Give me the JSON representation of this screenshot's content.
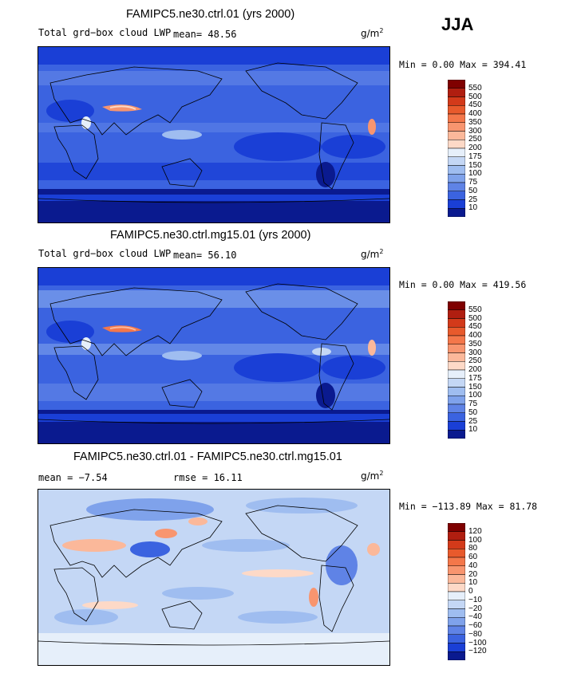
{
  "season": "JJA",
  "panels": [
    {
      "title": "FAMIPC5.ne30.ctrl.01 (yrs 2000)",
      "left_label": "Total grd−box cloud LWP",
      "stat_text": "mean=  48.56",
      "unit_base": "g/m",
      "unit_exp": "2",
      "minmax_text": "Min =   0.00 Max = 394.41",
      "colorbar": {
        "labels": [
          "550",
          "500",
          "450",
          "400",
          "350",
          "300",
          "250",
          "200",
          "175",
          "150",
          "100",
          "75",
          "50",
          "25",
          "10"
        ],
        "colors": [
          "#7f0000",
          "#b01e10",
          "#d33a1a",
          "#e85a2c",
          "#f4774a",
          "#f8956f",
          "#fbb89a",
          "#fdd9c7",
          "#e6effa",
          "#c4d7f5",
          "#9fbdf0",
          "#7fa2eb",
          "#5f83e6",
          "#3b63e0",
          "#1a3fd6",
          "#0a1a8f"
        ]
      }
    },
    {
      "title": "FAMIPC5.ne30.ctrl.mg15.01 (yrs 2000)",
      "left_label": "Total grd−box cloud LWP",
      "stat_text": "mean=  56.10",
      "unit_base": "g/m",
      "unit_exp": "2",
      "minmax_text": "Min =   0.00 Max = 419.56",
      "colorbar": {
        "labels": [
          "550",
          "500",
          "450",
          "400",
          "350",
          "300",
          "250",
          "200",
          "175",
          "150",
          "100",
          "75",
          "50",
          "25",
          "10"
        ],
        "colors": [
          "#7f0000",
          "#b01e10",
          "#d33a1a",
          "#e85a2c",
          "#f4774a",
          "#f8956f",
          "#fbb89a",
          "#fdd9c7",
          "#e6effa",
          "#c4d7f5",
          "#9fbdf0",
          "#7fa2eb",
          "#5f83e6",
          "#3b63e0",
          "#1a3fd6",
          "#0a1a8f"
        ]
      }
    },
    {
      "title": "FAMIPC5.ne30.ctrl.01 - FAMIPC5.ne30.ctrl.mg15.01",
      "left_label": "mean =   −7.54",
      "stat_text": "rmse =   16.11",
      "unit_base": "g/m",
      "unit_exp": "2",
      "minmax_text": "Min = −113.89 Max =  81.78",
      "colorbar": {
        "labels": [
          "120",
          "100",
          "80",
          "60",
          "40",
          "20",
          "10",
          "0",
          "−10",
          "−20",
          "−40",
          "−60",
          "−80",
          "−100",
          "−120"
        ],
        "colors": [
          "#7f0000",
          "#b01e10",
          "#d33a1a",
          "#e85a2c",
          "#f4774a",
          "#f8956f",
          "#fbb89a",
          "#fdd9c7",
          "#e6effa",
          "#c4d7f5",
          "#9fbdf0",
          "#7fa2eb",
          "#5f83e6",
          "#3b63e0",
          "#1a3fd6",
          "#0a1a8f"
        ]
      }
    }
  ],
  "chart_data": [
    {
      "type": "heatmap",
      "title": "FAMIPC5.ne30.ctrl.01 (yrs 2000)",
      "variable": "Total grd−box cloud LWP",
      "units": "g/m2",
      "season": "JJA",
      "mean": 48.56,
      "min": 0.0,
      "max": 394.41,
      "contour_levels": [
        10,
        25,
        50,
        75,
        100,
        150,
        175,
        200,
        250,
        300,
        350,
        400,
        450,
        500,
        550
      ]
    },
    {
      "type": "heatmap",
      "title": "FAMIPC5.ne30.ctrl.mg15.01 (yrs 2000)",
      "variable": "Total grd−box cloud LWP",
      "units": "g/m2",
      "season": "JJA",
      "mean": 56.1,
      "min": 0.0,
      "max": 419.56,
      "contour_levels": [
        10,
        25,
        50,
        75,
        100,
        150,
        175,
        200,
        250,
        300,
        350,
        400,
        450,
        500,
        550
      ]
    },
    {
      "type": "heatmap",
      "title": "FAMIPC5.ne30.ctrl.01 - FAMIPC5.ne30.ctrl.mg15.01",
      "units": "g/m2",
      "season": "JJA",
      "mean": -7.54,
      "rmse": 16.11,
      "min": -113.89,
      "max": 81.78,
      "contour_levels": [
        -120,
        -100,
        -80,
        -60,
        -40,
        -20,
        -10,
        0,
        10,
        20,
        40,
        60,
        80,
        100,
        120
      ]
    }
  ]
}
